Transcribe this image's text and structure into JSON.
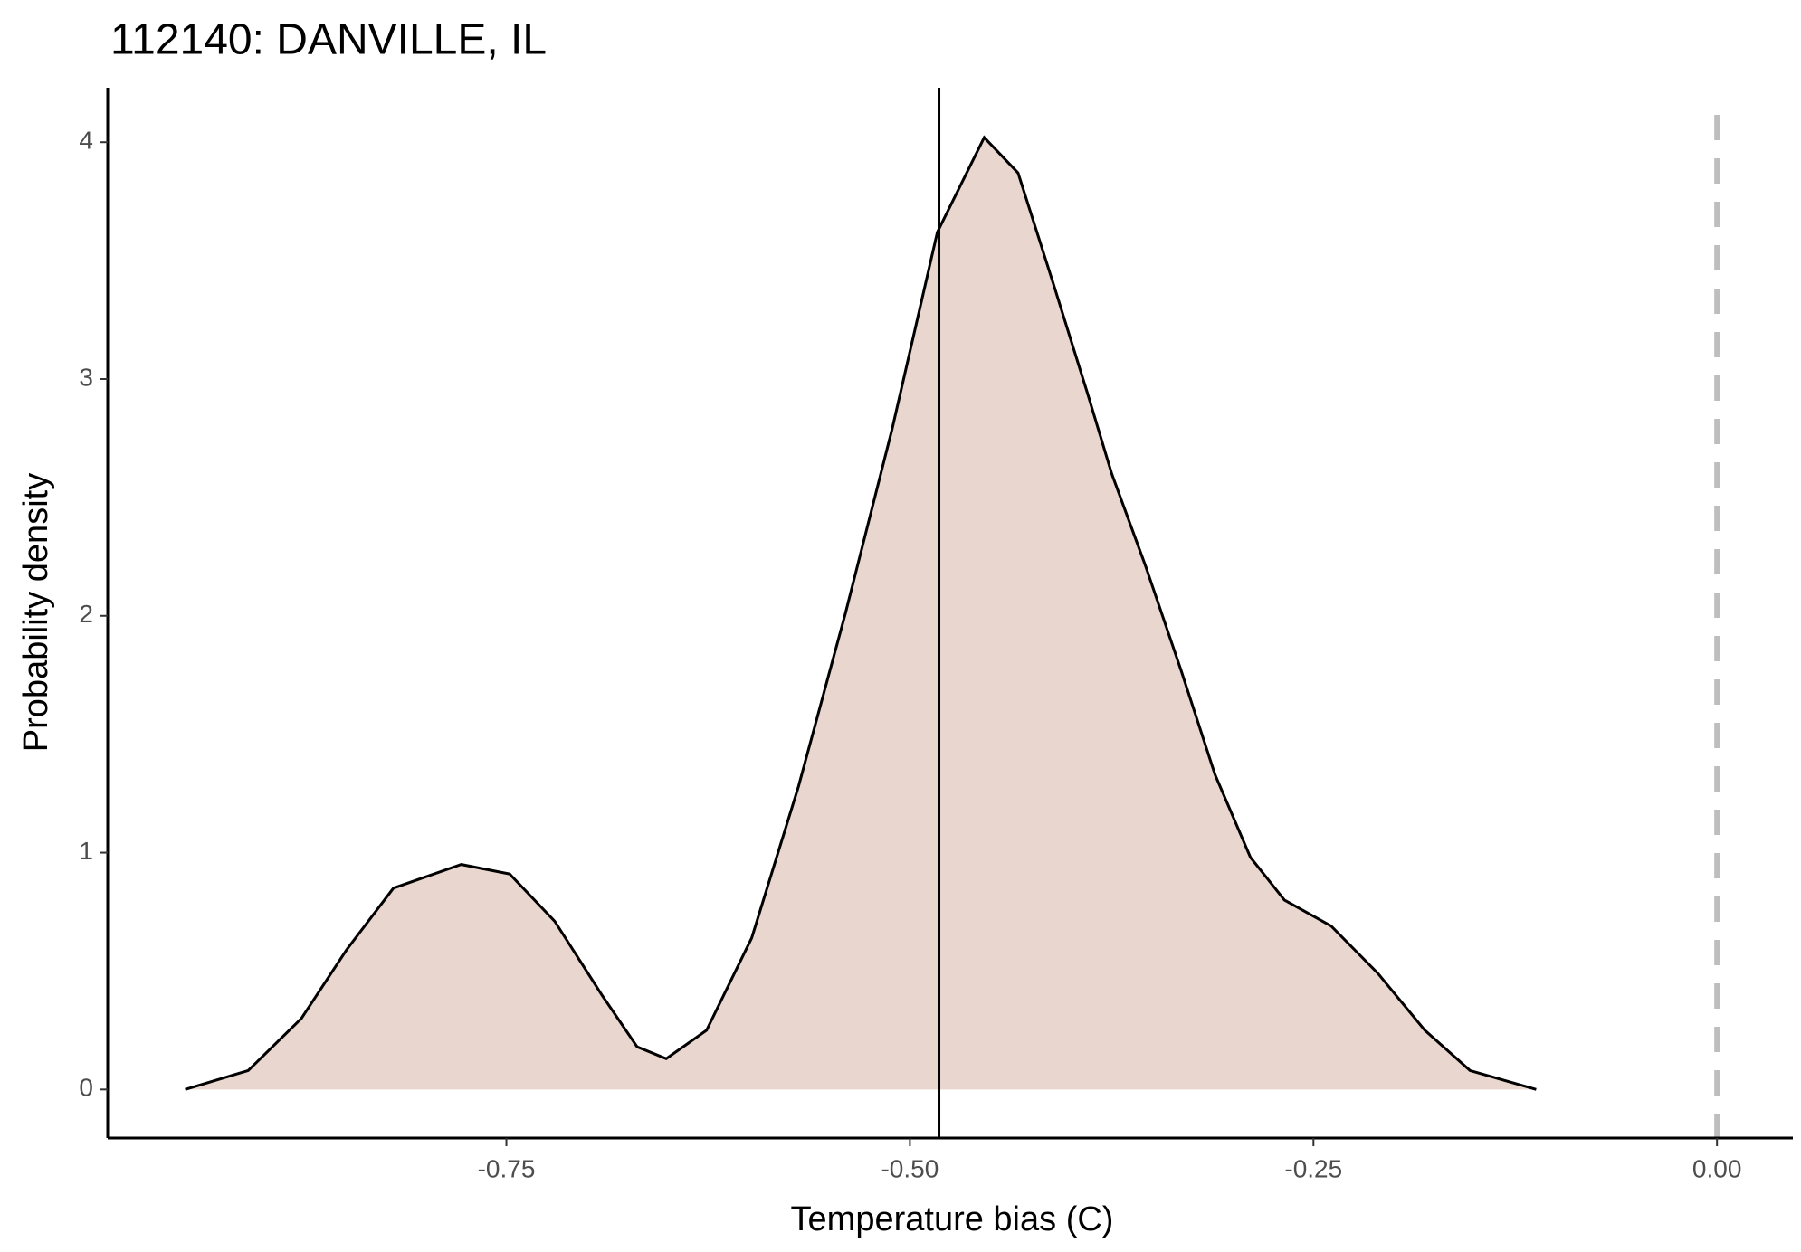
{
  "chart_data": {
    "type": "density",
    "title": "112140: DANVILLE, IL",
    "x_label": "Temperature bias (C)",
    "y_label": "Probability density",
    "x": [
      -0.949,
      -0.91,
      -0.877,
      -0.849,
      -0.82,
      -0.778,
      -0.748,
      -0.72,
      -0.691,
      -0.669,
      -0.651,
      -0.626,
      -0.598,
      -0.569,
      -0.54,
      -0.511,
      -0.483,
      -0.454,
      -0.433,
      -0.411,
      -0.39,
      -0.375,
      -0.354,
      -0.332,
      -0.311,
      -0.289,
      -0.268,
      -0.239,
      -0.21,
      -0.181,
      -0.153,
      -0.112
    ],
    "y": [
      0,
      0.08,
      0.3,
      0.59,
      0.85,
      0.95,
      0.91,
      0.71,
      0.4,
      0.18,
      0.13,
      0.25,
      0.64,
      1.28,
      2.01,
      2.79,
      3.62,
      4.02,
      3.87,
      3.4,
      2.94,
      2.6,
      2.21,
      1.77,
      1.33,
      0.98,
      0.8,
      0.69,
      0.49,
      0.25,
      0.08,
      0
    ],
    "fill_color": "#e9d6cf",
    "line_color": "#000000",
    "mean_line": -0.482,
    "reference_line": 0,
    "reference_color": "#bebebe",
    "xlim": [
      -0.997,
      0.047
    ],
    "ylim": [
      -0.205,
      4.23
    ],
    "xticks": [
      {
        "value": -0.75,
        "label": "-0.75"
      },
      {
        "value": -0.5,
        "label": "-0.50"
      },
      {
        "value": -0.25,
        "label": "-0.25"
      },
      {
        "value": 0,
        "label": "0.00"
      }
    ],
    "yticks": [
      0,
      1,
      2,
      3,
      4
    ]
  }
}
